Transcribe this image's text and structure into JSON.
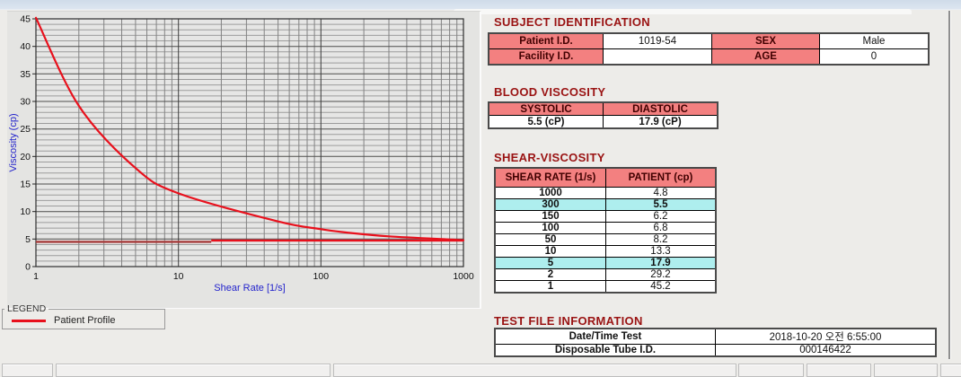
{
  "colors": {
    "section_title": "#9a1313",
    "table_header_bg": "#f38080",
    "table_header_text": "#400000",
    "row_highlight_bg": "#aeeeee",
    "curve_red": "#e8101c",
    "reference_dark_red": "#a63a3a",
    "axis_label_blue": "#2424cc",
    "title_bar_blue": "#d5e0ec"
  },
  "chart_data": {
    "type": "line",
    "title": "",
    "xlabel": "Shear Rate [1/s]",
    "ylabel": "Viscosity (cp)",
    "x_scale": "log",
    "xlim": [
      1,
      1000
    ],
    "ylim": [
      0,
      45
    ],
    "x_ticks": [
      1,
      10,
      100,
      1000
    ],
    "y_ticks": [
      0,
      5,
      10,
      15,
      20,
      25,
      30,
      35,
      40,
      45
    ],
    "grid": "on",
    "legend_position": "bottom-left-groupbox",
    "series": [
      {
        "name": "Patient Profile",
        "color": "#e8101c",
        "x": [
          1,
          2,
          5,
          10,
          50,
          100,
          150,
          300,
          1000
        ],
        "y": [
          45.2,
          29.2,
          17.9,
          13.3,
          8.2,
          6.8,
          6.2,
          5.5,
          4.8
        ]
      }
    ],
    "reference_lines": [
      {
        "y": 4.5,
        "x_from": 1,
        "x_to": 17,
        "color": "#a63a3a"
      },
      {
        "y": 4.75,
        "x_from": 17,
        "x_to": 1000,
        "color": "#e8101c"
      }
    ]
  },
  "legend": {
    "title": "LEGEND",
    "items": [
      {
        "label": "Patient Profile",
        "color": "#e8101c"
      }
    ]
  },
  "subject": {
    "title": "SUBJECT IDENTIFICATION",
    "rows": [
      {
        "cells": [
          {
            "text": "Patient I.D.",
            "header": true
          },
          {
            "text": "1019-54"
          },
          {
            "text": "SEX",
            "header": true
          },
          {
            "text": "Male"
          }
        ]
      },
      {
        "cells": [
          {
            "text": "Facility I.D.",
            "header": true
          },
          {
            "text": ""
          },
          {
            "text": "AGE",
            "header": true
          },
          {
            "text": "0"
          }
        ]
      }
    ]
  },
  "blood_viscosity": {
    "title": "BLOOD VISCOSITY",
    "headers": [
      "SYSTOLIC",
      "DIASTOLIC"
    ],
    "values": [
      "5.5 (cP)",
      "17.9 (cP)"
    ]
  },
  "shear_viscosity": {
    "title": "SHEAR-VISCOSITY",
    "headers": [
      "SHEAR RATE (1/s)",
      "PATIENT (cp)"
    ],
    "rows": [
      [
        "1000",
        "4.8"
      ],
      [
        "300",
        "5.5"
      ],
      [
        "150",
        "6.2"
      ],
      [
        "100",
        "6.8"
      ],
      [
        "50",
        "8.2"
      ],
      [
        "10",
        "13.3"
      ],
      [
        "5",
        "17.9"
      ],
      [
        "2",
        "29.2"
      ],
      [
        "1",
        "45.2"
      ]
    ],
    "highlighted_rows": [
      1,
      6
    ]
  },
  "test_file": {
    "title": "TEST FILE INFORMATION",
    "rows": [
      {
        "label": "Date/Time Test",
        "value": "2018-10-20   오전 6:55:00"
      },
      {
        "label": "Disposable Tube I.D.",
        "value": "000146422"
      }
    ]
  }
}
